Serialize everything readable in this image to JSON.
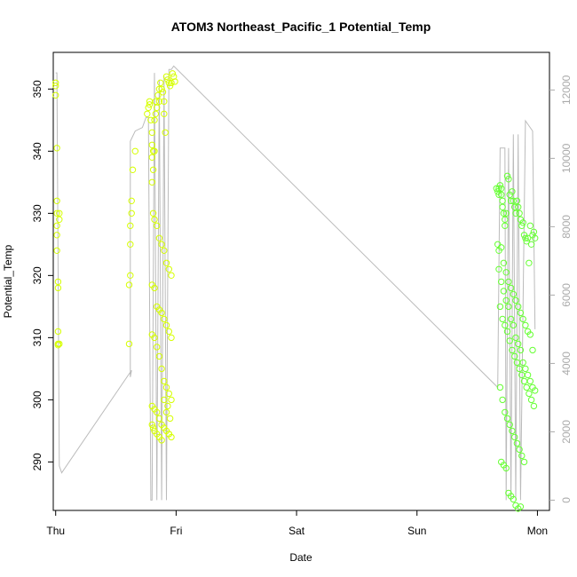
{
  "chart_data": {
    "type": "scatter",
    "title": "ATOM3 Northeast_Pacific_1 Potential_Temp",
    "xlabel": "Date",
    "ylabel": "Potential_Temp",
    "x_ticks": [
      "Thu",
      "Fri",
      "Sat",
      "Sun",
      "Mon"
    ],
    "x_range_days": [
      -0.02,
      4.1
    ],
    "ylim": [
      282.2,
      355.9
    ],
    "y_ticks": [
      290,
      300,
      310,
      320,
      330,
      340,
      350
    ],
    "y2lim": [
      -300,
      13100
    ],
    "y2_ticks": [
      0,
      2000,
      4000,
      6000,
      8000,
      10000,
      12000
    ],
    "grid": false,
    "legend": "none",
    "colors": {
      "points_early": "#d6ff00",
      "points_late": "#66ff33",
      "depth_line": "#bbbbbb",
      "axis": "#000000",
      "right_axis": "#aaaaaa"
    },
    "depth_line": [
      [
        0.0,
        12500
      ],
      [
        0.01,
        12500
      ],
      [
        0.03,
        1000
      ],
      [
        0.05,
        800
      ],
      [
        0.63,
        3800
      ],
      [
        0.62,
        3600
      ],
      [
        0.62,
        10500
      ],
      [
        0.66,
        10800
      ],
      [
        0.72,
        10900
      ],
      [
        0.75,
        11200
      ],
      [
        0.77,
        11200
      ],
      [
        0.79,
        0
      ],
      [
        0.8,
        0
      ],
      [
        0.82,
        12500
      ],
      [
        0.84,
        0
      ],
      [
        0.86,
        12300
      ],
      [
        0.88,
        0
      ],
      [
        0.9,
        12400
      ],
      [
        0.92,
        0
      ],
      [
        0.94,
        12600
      ],
      [
        0.96,
        12600
      ],
      [
        0.98,
        12700
      ],
      [
        3.67,
        3300
      ],
      [
        3.69,
        10300
      ],
      [
        3.73,
        10300
      ],
      [
        3.74,
        0
      ],
      [
        3.76,
        10300
      ],
      [
        3.78,
        0
      ],
      [
        3.8,
        10700
      ],
      [
        3.82,
        0
      ],
      [
        3.84,
        10700
      ],
      [
        3.86,
        0
      ],
      [
        3.9,
        11100
      ],
      [
        3.96,
        10800
      ],
      [
        3.98,
        5000
      ]
    ],
    "series": [
      {
        "x": [
          0.0,
          0.0,
          0.0,
          0.01,
          0.01,
          0.01,
          0.01,
          0.01,
          0.01,
          0.02,
          0.02,
          0.02,
          0.02,
          0.02,
          0.03,
          0.03,
          0.03,
          0.61,
          0.61,
          0.62,
          0.62,
          0.62,
          0.63,
          0.63,
          0.64,
          0.66,
          0.76,
          0.77,
          0.78,
          0.78,
          0.79,
          0.8,
          0.8,
          0.8,
          0.81,
          0.81,
          0.82,
          0.82,
          0.83,
          0.83,
          0.84,
          0.85,
          0.86,
          0.86,
          0.87,
          0.88,
          0.89,
          0.9,
          0.9,
          0.91,
          0.92,
          0.93,
          0.94,
          0.95,
          0.96,
          0.97,
          0.98,
          0.99,
          0.8,
          0.81,
          0.82,
          0.84,
          0.86,
          0.88,
          0.9,
          0.92,
          0.94,
          0.96,
          0.8,
          0.82,
          0.84,
          0.86,
          0.88,
          0.9,
          0.92,
          0.94,
          0.96,
          0.8,
          0.82,
          0.84,
          0.86,
          0.88,
          0.9,
          0.92,
          0.94,
          0.96,
          0.8,
          0.82,
          0.84,
          0.86,
          0.88,
          0.9,
          0.92,
          0.94,
          0.96,
          0.8,
          0.81,
          0.82,
          0.84,
          0.86,
          0.88,
          0.9,
          0.92,
          0.93,
          0.94,
          0.95
        ],
        "y": [
          351.0,
          350.5,
          349.0,
          340.5,
          332.0,
          330.0,
          328.0,
          326.5,
          324.0,
          319.0,
          318.0,
          311.0,
          309.0,
          308.8,
          309.0,
          330.0,
          329.0,
          309.0,
          318.5,
          320.0,
          325.0,
          328.0,
          330.0,
          332.0,
          337.0,
          340.0,
          346.0,
          347.0,
          348.0,
          347.5,
          345.0,
          343.0,
          341.0,
          339.0,
          340.0,
          337.0,
          340.0,
          345.0,
          348.0,
          346.0,
          347.0,
          349.0,
          350.0,
          348.0,
          351.0,
          350.0,
          349.5,
          348.0,
          346.0,
          343.0,
          352.0,
          351.5,
          351.0,
          350.5,
          351.0,
          352.5,
          352.0,
          351.2,
          335.0,
          330.0,
          329.0,
          328.0,
          326.0,
          325.0,
          324.0,
          322.0,
          321.0,
          320.0,
          318.5,
          318.0,
          315.0,
          314.5,
          314.0,
          313.0,
          312.0,
          311.0,
          310.0,
          310.5,
          310.0,
          308.5,
          307.0,
          305.0,
          303.0,
          302.0,
          301.0,
          300.0,
          299.0,
          298.5,
          298.0,
          297.0,
          296.0,
          295.5,
          295.0,
          294.5,
          294.0,
          296.0,
          295.5,
          295.0,
          294.5,
          294.0,
          293.5,
          300.0,
          298.0,
          299.0,
          294.5,
          297.0
        ]
      },
      {
        "x": [
          3.66,
          3.67,
          3.68,
          3.68,
          3.69,
          3.7,
          3.7,
          3.71,
          3.71,
          3.72,
          3.73,
          3.73,
          3.74,
          3.75,
          3.76,
          3.77,
          3.78,
          3.79,
          3.8,
          3.81,
          3.82,
          3.83,
          3.84,
          3.85,
          3.86,
          3.87,
          3.88,
          3.89,
          3.9,
          3.91,
          3.92,
          3.93,
          3.94,
          3.95,
          3.96,
          3.97,
          3.98,
          3.67,
          3.68,
          3.7,
          3.72,
          3.74,
          3.76,
          3.78,
          3.8,
          3.82,
          3.84,
          3.86,
          3.88,
          3.9,
          3.92,
          3.94,
          3.96,
          3.68,
          3.7,
          3.72,
          3.74,
          3.76,
          3.78,
          3.8,
          3.82,
          3.84,
          3.86,
          3.88,
          3.9,
          3.92,
          3.94,
          3.96,
          3.98,
          3.69,
          3.71,
          3.73,
          3.75,
          3.77,
          3.79,
          3.81,
          3.83,
          3.85,
          3.87,
          3.89,
          3.91,
          3.93,
          3.95,
          3.97,
          3.69,
          3.71,
          3.73,
          3.75,
          3.77,
          3.79,
          3.81,
          3.83,
          3.85,
          3.87,
          3.89,
          3.7,
          3.72,
          3.74,
          3.76,
          3.78,
          3.8,
          3.82,
          3.84,
          3.86
        ],
        "y": [
          334.0,
          333.5,
          334.0,
          333.0,
          334.5,
          333.0,
          334.0,
          331.0,
          332.0,
          330.0,
          328.0,
          329.0,
          330.0,
          336.0,
          335.5,
          333.0,
          332.0,
          333.5,
          332.0,
          331.0,
          330.0,
          332.0,
          331.0,
          330.0,
          329.0,
          328.0,
          328.5,
          326.5,
          326.0,
          325.5,
          326.0,
          322.0,
          328.0,
          325.0,
          326.5,
          327.0,
          326.0,
          325.0,
          324.0,
          324.5,
          322.0,
          320.5,
          319.0,
          318.0,
          317.0,
          316.0,
          315.0,
          314.0,
          313.0,
          312.0,
          311.0,
          310.5,
          308.0,
          321.0,
          319.0,
          317.5,
          316.0,
          315.0,
          313.0,
          312.0,
          310.0,
          309.0,
          308.0,
          306.0,
          305.0,
          304.0,
          303.0,
          302.0,
          301.5,
          315.0,
          313.0,
          312.0,
          311.0,
          309.5,
          308.0,
          307.0,
          306.0,
          305.0,
          304.0,
          303.0,
          302.0,
          301.0,
          300.0,
          299.0,
          302.0,
          300.0,
          298.0,
          297.0,
          296.0,
          295.0,
          294.0,
          293.0,
          292.0,
          291.0,
          290.0,
          290.0,
          289.5,
          289.0,
          285.0,
          284.5,
          284.0,
          283.0,
          282.5,
          282.8
        ]
      }
    ]
  }
}
